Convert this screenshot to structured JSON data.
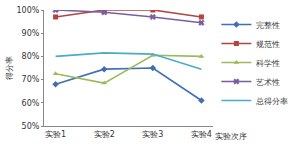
{
  "chart_data": {
    "type": "line",
    "x_label": "实验次序",
    "y_label": "得分率",
    "categories": [
      "实验1",
      "实验2",
      "实验3",
      "实验4"
    ],
    "series": [
      {
        "name": "完整性",
        "color": "#3f6fb6",
        "marker": "diamond",
        "values": [
          68,
          74.5,
          75,
          61
        ]
      },
      {
        "name": "规范性",
        "color": "#b5443f",
        "marker": "square",
        "values": [
          97,
          100,
          100,
          97
        ]
      },
      {
        "name": "科学性",
        "color": "#9bbb59",
        "marker": "triangle-up",
        "values": [
          72.5,
          68.5,
          80.5,
          80
        ]
      },
      {
        "name": "艺术性",
        "color": "#7a5ea0",
        "marker": "x",
        "values": [
          100,
          99,
          97,
          94.5
        ]
      },
      {
        "name": "总得分率",
        "color": "#4bacc6",
        "marker": "none",
        "values": [
          80,
          81.5,
          81,
          74.5
        ]
      }
    ],
    "ylim": [
      50,
      100
    ],
    "yticks": [
      {
        "value": 50,
        "label": "50%"
      },
      {
        "value": 60,
        "label": "60%"
      },
      {
        "value": 70,
        "label": "70%"
      },
      {
        "value": 80,
        "label": "80%"
      },
      {
        "value": 90,
        "label": "90%"
      },
      {
        "value": 100,
        "label": "100%"
      }
    ],
    "grid": false,
    "legend": "right"
  }
}
